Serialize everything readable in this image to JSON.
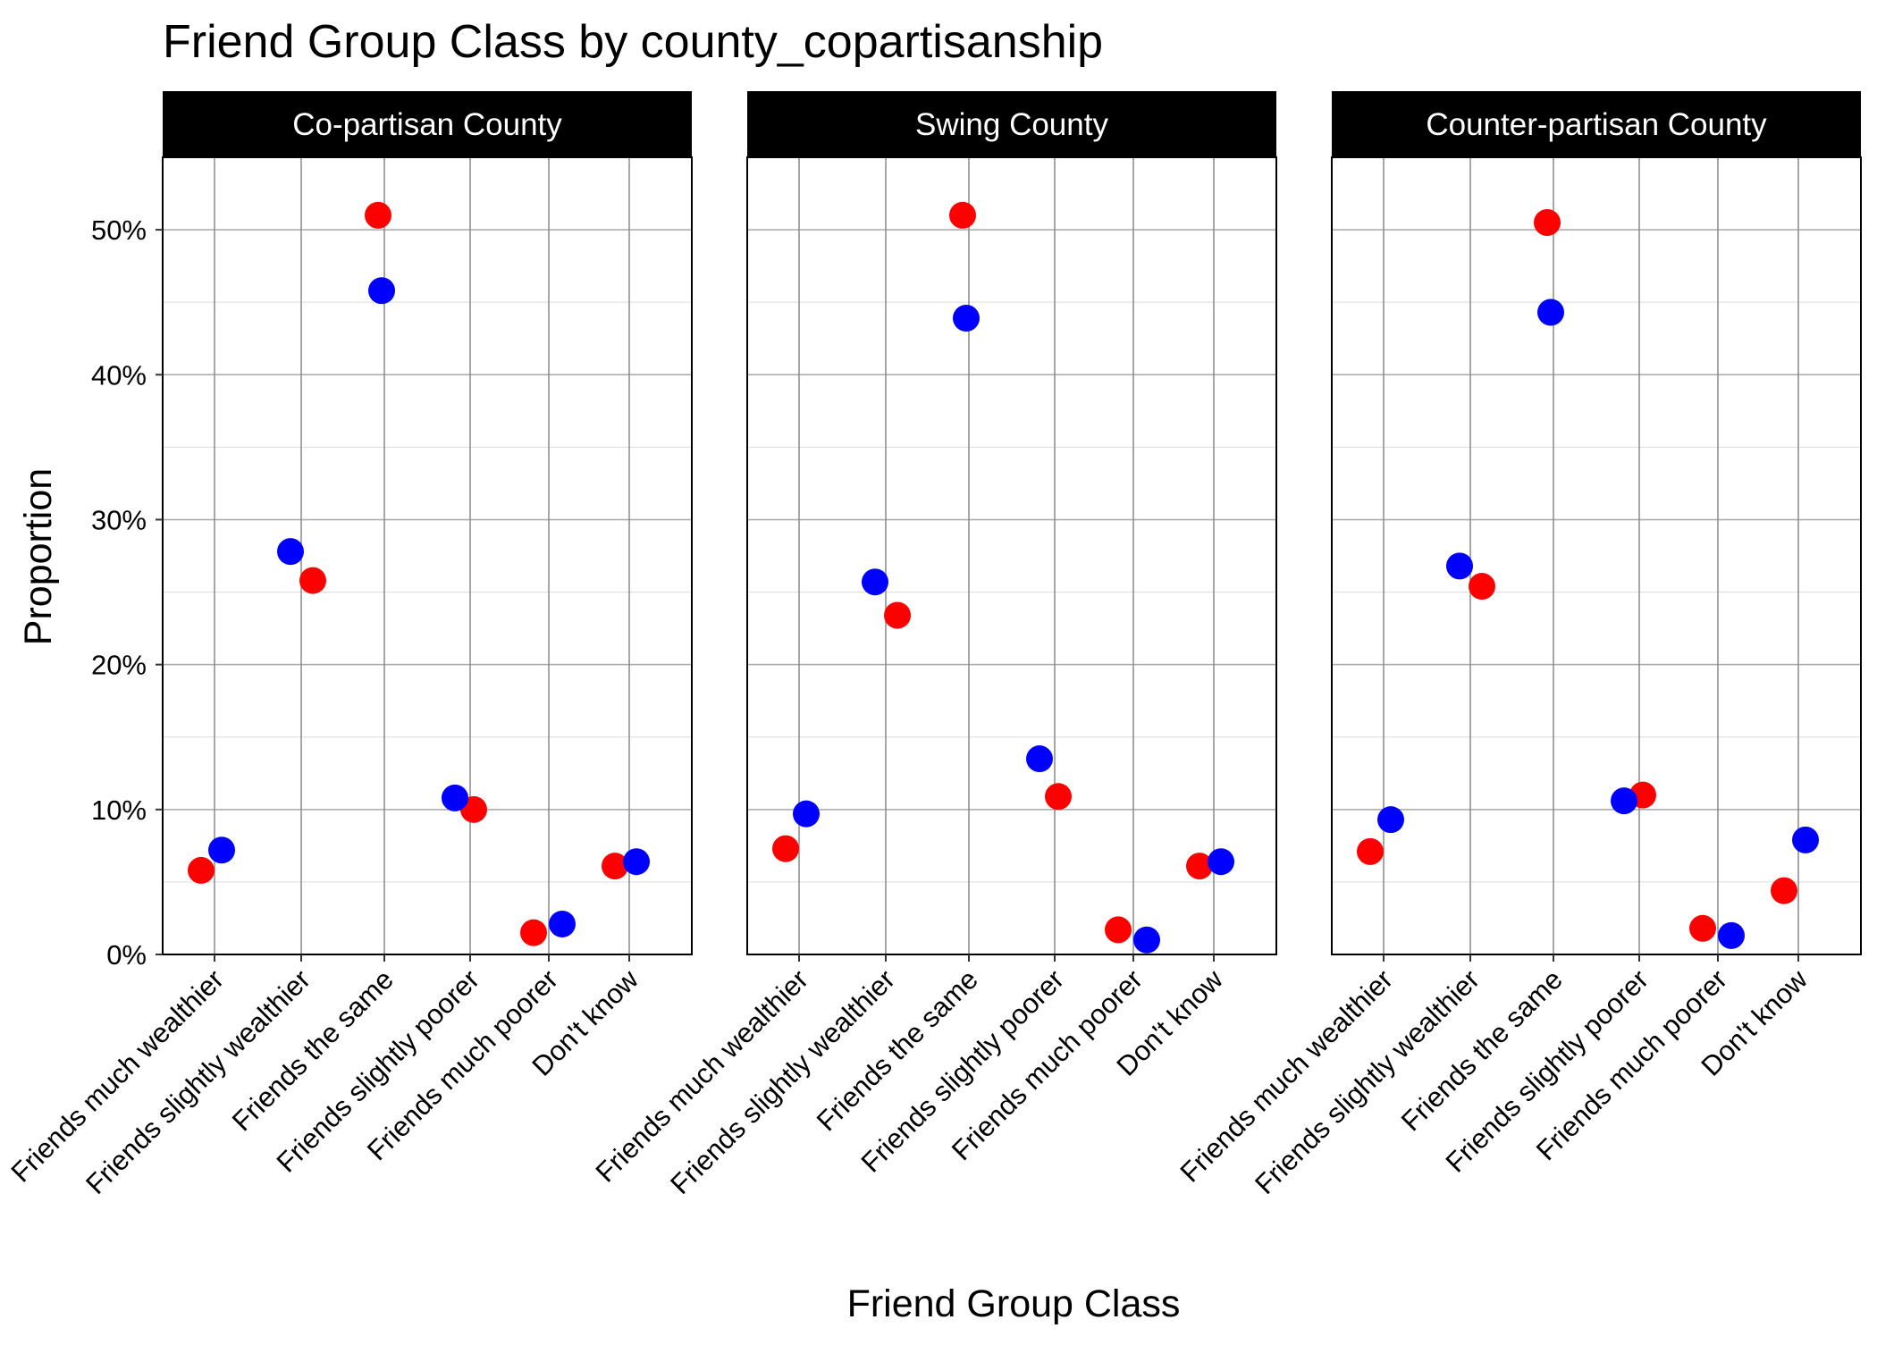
{
  "chart_data": {
    "type": "scatter",
    "title": "Friend Group Class by county_copartisanship",
    "xlabel": "Friend Group Class",
    "ylabel": "Proportion",
    "categories": [
      "Friends much wealthier",
      "Friends slightly wealthier",
      "Friends the same",
      "Friends slightly poorer",
      "Friends much poorer",
      "Don't know"
    ],
    "y_ticks": [
      "0%",
      "10%",
      "20%",
      "30%",
      "40%",
      "50%"
    ],
    "y_tick_values": [
      0,
      10,
      20,
      30,
      40,
      50
    ],
    "ylim": [
      0,
      55
    ],
    "grid": true,
    "legend": "none",
    "series_colors": {
      "blue": "#0000FF",
      "red": "#FF0000"
    },
    "panels": [
      {
        "label": "Co-partisan County",
        "blue": [
          7.2,
          27.8,
          45.8,
          10.8,
          2.1,
          6.4
        ],
        "red": [
          5.8,
          25.8,
          51.0,
          10.0,
          1.5,
          6.1
        ]
      },
      {
        "label": "Swing County",
        "blue": [
          9.7,
          25.7,
          43.9,
          13.5,
          1.0,
          6.4
        ],
        "red": [
          7.3,
          23.4,
          51.0,
          10.9,
          1.7,
          6.1
        ]
      },
      {
        "label": "Counter-partisan County",
        "blue": [
          9.3,
          26.8,
          44.3,
          10.6,
          1.3,
          7.9
        ],
        "red": [
          7.1,
          25.4,
          50.5,
          11.0,
          1.8,
          4.4
        ]
      }
    ]
  }
}
